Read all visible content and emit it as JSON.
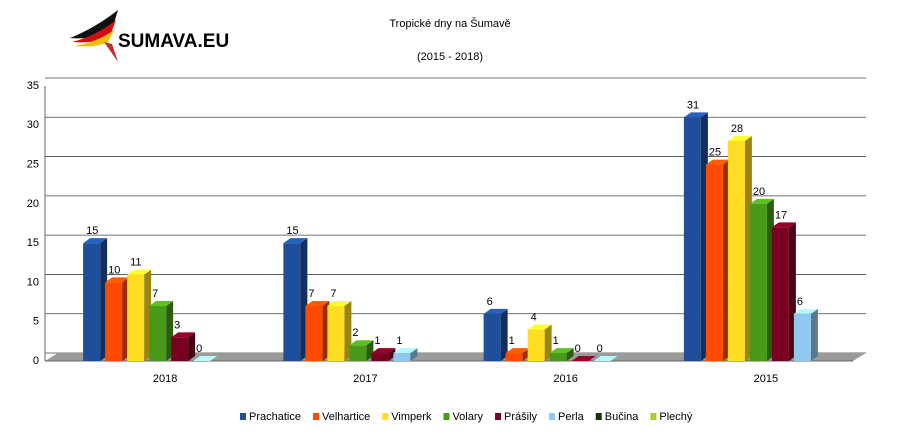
{
  "logo": "SUMAVA.EU",
  "chart_data": {
    "type": "bar3d",
    "title": "Tropické dny na Šumavě",
    "subtitle": "(2015 - 2018)",
    "categories": [
      "2018",
      "2017",
      "2016",
      "2015"
    ],
    "series": [
      {
        "name": "Prachatice",
        "color": "#1f4e9a",
        "values": [
          15,
          15,
          6,
          31
        ]
      },
      {
        "name": "Velhartice",
        "color": "#ff4a00",
        "values": [
          10,
          7,
          1,
          25
        ]
      },
      {
        "name": "Vimperk",
        "color": "#ffdd22",
        "values": [
          11,
          7,
          4,
          28
        ]
      },
      {
        "name": "Volary",
        "color": "#4a9a1a",
        "values": [
          7,
          2,
          1,
          20
        ]
      },
      {
        "name": "Prášily",
        "color": "#7a0020",
        "values": [
          3,
          1,
          0,
          17
        ]
      },
      {
        "name": "Perla",
        "color": "#8fc8f0",
        "values": [
          0,
          1,
          0,
          6
        ]
      },
      {
        "name": "Bučina",
        "color": "#1a3010",
        "values": [
          null,
          null,
          null,
          null
        ]
      },
      {
        "name": "Plechý",
        "color": "#a8d020",
        "values": [
          null,
          null,
          null,
          null
        ]
      }
    ],
    "ylim": [
      0,
      35
    ],
    "yticks": [
      0,
      5,
      10,
      15,
      20,
      25,
      30,
      35
    ],
    "grid": true,
    "legend": "bottom"
  }
}
